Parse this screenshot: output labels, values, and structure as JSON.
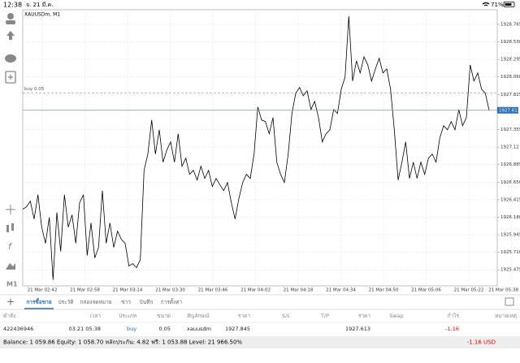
{
  "status_bar": {
    "time": "12:38",
    "date": "จ. 21 มี.ค.",
    "battery": "71%"
  },
  "chart_data": {
    "type": "line",
    "title": "XAUUSDm, M1",
    "color": "#000000",
    "grid": true,
    "order_label": "buy 0.05",
    "order_price": 1927.845,
    "current_price": 1927.613,
    "ylim": [
      1925.26,
      1928.96
    ],
    "yticks": [
      1925.475,
      {
        "value": 1925.71,
        "label": "1925.710"
      },
      1925.945,
      {
        "value": 1926.18,
        "label": "1926.180"
      },
      1926.415,
      {
        "value": 1926.65,
        "label": "1926.650"
      },
      1926.885,
      1927.12,
      1927.355,
      1927.825,
      {
        "value": 1928.06,
        "label": "1928.060"
      },
      1928.295,
      {
        "value": 1928.53,
        "label": "1928.530"
      },
      1928.765
    ],
    "xticks": [
      "21 Mar 02:42",
      "21 Mar 02:58",
      "21 Mar 03:14",
      "21 Mar 03:30",
      "21 Mar 03:46",
      "21 Mar 04:02",
      "21 Mar 04:18",
      "21 Mar 04:34",
      "21 Mar 04:50",
      "21 Mar 05:06",
      "21 Mar 05:22",
      "21 Mar 05:38"
    ],
    "values": [
      1926.287,
      1926.319,
      1926.395,
      1926.156,
      1926.482,
      1926.048,
      1925.83,
      1926.178,
      1925.341,
      1926.243,
      1925.721,
      1926.482,
      1926.048,
      1926.211,
      1925.83,
      1926.374,
      1926.482,
      1925.667,
      1926.102,
      1925.634,
      1925.776,
      1926.537,
      1925.83,
      1926.102,
      1925.776,
      1925.993,
      1925.884,
      1925.83,
      1925.526,
      1925.558,
      1925.504,
      1925.613,
      1926.808,
      1927.026,
      1927.482,
      1927.026,
      1927.352,
      1926.917,
      1927.08,
      1927.189,
      1926.917,
      1927.298,
      1926.863,
      1926.971,
      1926.754,
      1926.808,
      1926.678,
      1926.863,
      1926.7,
      1926.808,
      1926.591,
      1926.7,
      1926.613,
      1926.537,
      1926.645,
      1926.374,
      1926.156,
      1926.428,
      1926.645,
      1926.754,
      1926.7,
      1927.026,
      1927.656,
      1927.482,
      1927.461,
      1927.298,
      1927.515,
      1926.917,
      1926.754,
      1926.645,
      1927.026,
      1927.569,
      1927.841,
      1927.917,
      1927.808,
      1927.874,
      1927.624,
      1927.732,
      1927.515,
      1927.189,
      1927.298,
      1927.352,
      1927.624,
      1927.569,
      1927.895,
      1928.058,
      1928.874,
      1928.004,
      1928.276,
      1928.113,
      1928.33,
      1928.221,
      1928.004,
      1928.167,
      1928.308,
      1928.113,
      1928.167,
      1927.895,
      1927.352,
      1926.678,
      1926.917,
      1927.189,
      1926.7,
      1926.917,
      1926.7,
      1926.917,
      1926.754,
      1926.971,
      1927.026,
      1926.917,
      1927.243,
      1927.406,
      1927.352,
      1927.461,
      1927.352,
      1927.624,
      1927.406,
      1927.515,
      1928.221,
      1928.004,
      1928.113,
      1927.895,
      1927.841,
      1927.613
    ]
  },
  "tabs": [
    "การซื้อขาย",
    "ประวัติ",
    "กล่องจดหมาย",
    "ข่าว",
    "บันทึก",
    "การตั้งค่า"
  ],
  "toolbar": {
    "period": "M1"
  },
  "table": {
    "headers": [
      "คำสั่ง",
      "เวลา",
      "ประเภท",
      "ขนาด",
      "สัญลักษณ์",
      "ราคา",
      "S/L",
      "T/P",
      "ราคา",
      "Swap",
      "กำไร",
      "หมายเหตุ"
    ],
    "row": {
      "order": "422436946",
      "time": "03.21 05:38",
      "type": "buy",
      "size": "0.05",
      "symbol": "xauusdm",
      "open_price": "1927.845",
      "price": "1927.613",
      "profit": "-1.16"
    }
  },
  "summary": {
    "text": "Balance: 1 059.86 Equity: 1 058.70 หลักประกัน: 4.82 ฟรี: 1 053.88 Level: 21 966.50%",
    "total": "-1.16 USD"
  }
}
